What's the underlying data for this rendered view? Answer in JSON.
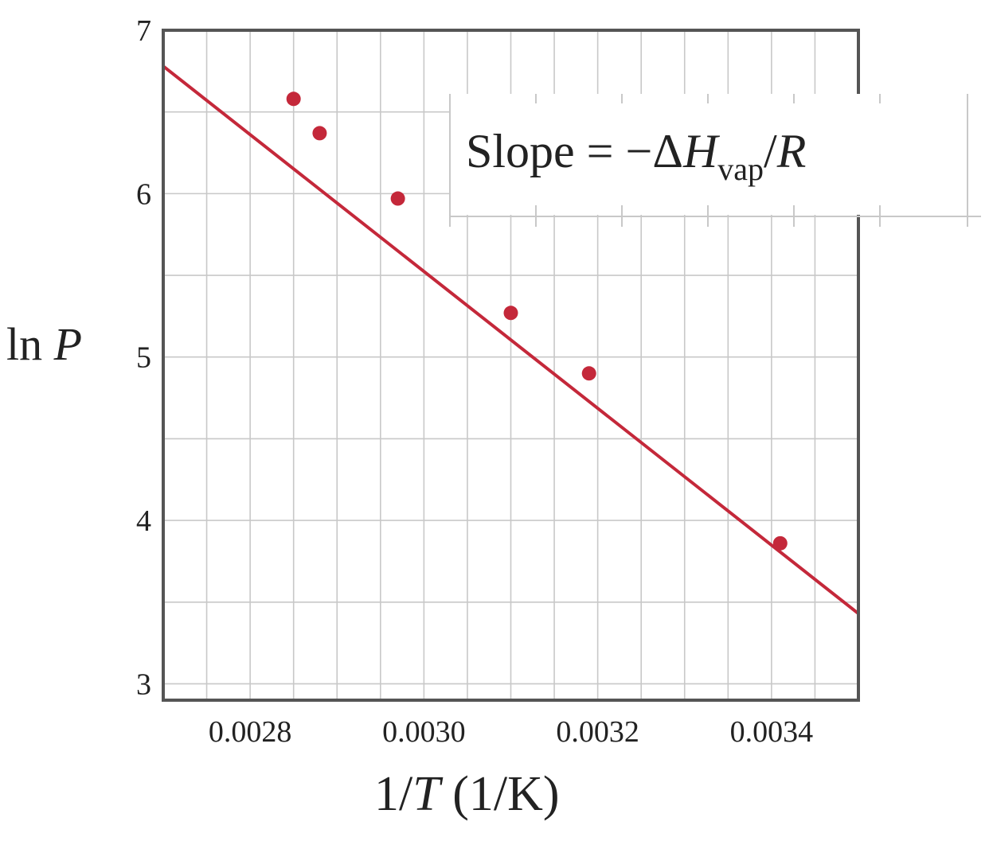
{
  "chart_data": {
    "type": "scatter",
    "title": "",
    "xlabel": "1/T (1/K)",
    "ylabel": "ln P",
    "xlim": [
      0.0027,
      0.0035
    ],
    "ylim": [
      2.9,
      7.0
    ],
    "x_tick_labels": [
      "0.0028",
      "0.0030",
      "0.0032",
      "0.0034"
    ],
    "y_tick_labels": [
      "3",
      "4",
      "5",
      "6",
      "7"
    ],
    "grid": true,
    "series": [
      {
        "points": [
          {
            "x": 0.00285,
            "y": 6.58
          },
          {
            "x": 0.00288,
            "y": 6.37
          },
          {
            "x": 0.00297,
            "y": 5.97
          },
          {
            "x": 0.0031,
            "y": 5.27
          },
          {
            "x": 0.00319,
            "y": 4.9
          },
          {
            "x": 0.00341,
            "y": 3.86
          }
        ],
        "fit_line": {
          "x": [
            0.0027,
            0.0035
          ],
          "y": [
            6.78,
            3.43
          ]
        }
      }
    ],
    "annotation": "Slope = −ΔH_vap/R",
    "colors": {
      "series": "#c4283a",
      "grid": "#c8c8c8",
      "frame": "#555555"
    }
  }
}
